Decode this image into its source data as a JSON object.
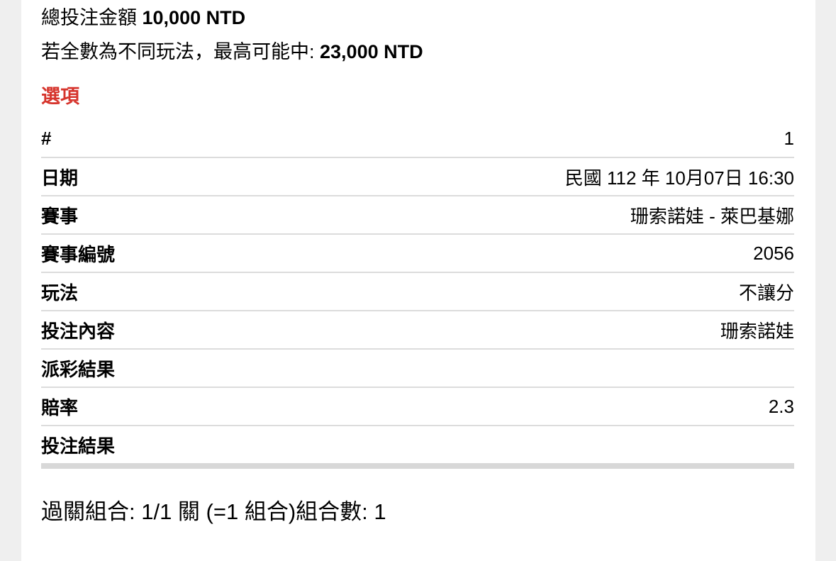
{
  "summary": {
    "total_bet_label": "總投注金額 ",
    "total_bet_amount": "10,000 NTD",
    "max_win_label": "若全數為不同玩法，最高可能中: ",
    "max_win_amount": "23,000 NTD"
  },
  "section": {
    "title": "選項"
  },
  "bet_table": {
    "rows": [
      {
        "label": "#",
        "value": "1"
      },
      {
        "label": "日期",
        "value": "民國 112 年 10月07日 16:30"
      },
      {
        "label": "賽事",
        "value": "珊索諾娃 - 萊巴基娜"
      },
      {
        "label": "賽事編號",
        "value": "2056"
      },
      {
        "label": "玩法",
        "value": "不讓分"
      },
      {
        "label": "投注內容",
        "value": "珊索諾娃"
      },
      {
        "label": "派彩結果",
        "value": ""
      },
      {
        "label": "賠率",
        "value": "2.3"
      },
      {
        "label": "投注結果",
        "value": ""
      }
    ]
  },
  "footer": {
    "combos_text": "過關組合: 1/1 關 (=1 組合)組合數: 1"
  },
  "colors": {
    "accent_red": "#d6342c",
    "row_divider": "#dcdcdc",
    "table_bottom_bar": "#d8d8d8",
    "page_background": "#efefef",
    "content_background": "#ffffff"
  }
}
